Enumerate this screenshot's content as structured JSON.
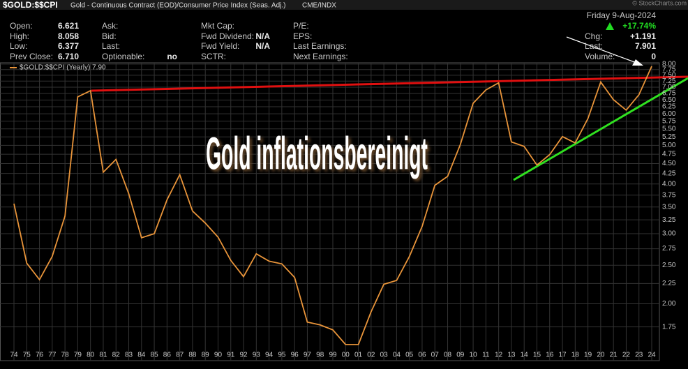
{
  "chart_data": {
    "type": "line",
    "title": "$GOLD:$$CPI",
    "subtitle": "Gold - Continuous Contract (EOD)/Consumer Price Index (Seas. Adj.)",
    "exchange": "CME/INDX",
    "copyright": "© StockCharts.com",
    "date": "Friday  9-Aug-2024",
    "change_pct": "+17.74%",
    "info": [
      [
        {
          "label": "Open:",
          "value": "6.621"
        },
        {
          "label": "High:",
          "value": "8.058"
        },
        {
          "label": "Low:",
          "value": "6.377"
        },
        {
          "label": "Prev Close:",
          "value": "6.710"
        }
      ],
      [
        {
          "label": "Ask:"
        },
        {
          "label": "Bid:"
        },
        {
          "label": "Last:"
        },
        {
          "label": "Optionable:",
          "value": "no"
        }
      ],
      [
        {
          "label": "Mkt Cap:"
        },
        {
          "label": "Fwd Dividend:",
          "value": "N/A"
        },
        {
          "label": "Fwd Yield:",
          "value": "N/A"
        },
        {
          "label": "SCTR:"
        }
      ],
      [
        {
          "label": "P/E:"
        },
        {
          "label": "EPS:"
        },
        {
          "label": "Last Earnings:"
        },
        {
          "label": "Next Earnings:"
        }
      ]
    ],
    "quote": [
      {
        "label": "Chg:",
        "value": "+1.191"
      },
      {
        "label": "Last:",
        "value": "7.901"
      },
      {
        "label": "Volume:",
        "value": "0"
      }
    ],
    "annotation": "Gold inflationsbereinigt",
    "categories": [
      "74",
      "75",
      "76",
      "77",
      "78",
      "79",
      "80",
      "81",
      "82",
      "83",
      "84",
      "85",
      "86",
      "87",
      "88",
      "89",
      "90",
      "91",
      "92",
      "93",
      "94",
      "95",
      "96",
      "97",
      "98",
      "99",
      "00",
      "01",
      "02",
      "03",
      "04",
      "05",
      "06",
      "07",
      "08",
      "09",
      "10",
      "11",
      "12",
      "13",
      "14",
      "15",
      "16",
      "17",
      "18",
      "19",
      "20",
      "21",
      "22",
      "23",
      "24"
    ],
    "series": [
      {
        "name": "$GOLD:$$CPI (Yearly) 7.90",
        "color": "#e8943a",
        "values": [
          3.57,
          2.53,
          2.3,
          2.63,
          3.32,
          6.62,
          6.86,
          4.28,
          4.61,
          3.78,
          2.93,
          3.0,
          3.65,
          4.22,
          3.42,
          3.19,
          2.94,
          2.57,
          2.34,
          2.67,
          2.56,
          2.52,
          2.33,
          1.8,
          1.77,
          1.72,
          1.58,
          1.58,
          1.91,
          2.24,
          2.29,
          2.63,
          3.13,
          3.97,
          4.18,
          5.03,
          6.38,
          6.89,
          7.18,
          5.1,
          4.97,
          4.46,
          4.74,
          5.26,
          5.07,
          5.84,
          7.21,
          6.51,
          6.13,
          6.7,
          7.9
        ]
      }
    ],
    "log_scale": true,
    "grid": true,
    "ylim": [
      1.44,
      8.06
    ],
    "yticks": [
      {
        "value": 8,
        "label": "8.00"
      },
      {
        "value": 7.75,
        "label": "7.75"
      },
      {
        "value": 7.5,
        "label": "7.50"
      },
      {
        "value": 7.25,
        "label": "7.25"
      },
      {
        "value": 7,
        "label": "7.00"
      },
      {
        "value": 6.75,
        "label": "6.75"
      },
      {
        "value": 6.5,
        "label": "6.50"
      },
      {
        "value": 6.25,
        "label": "6.25"
      },
      {
        "value": 6,
        "label": "6.00"
      },
      {
        "value": 5.75,
        "label": "5.75"
      },
      {
        "value": 5.5,
        "label": "5.50"
      },
      {
        "value": 5.25,
        "label": "5.25"
      },
      {
        "value": 5,
        "label": "5.00"
      },
      {
        "value": 4.75,
        "label": "4.75"
      },
      {
        "value": 4.5,
        "label": "4.50"
      },
      {
        "value": 4.25,
        "label": "4.25"
      },
      {
        "value": 4,
        "label": "4.00"
      },
      {
        "value": 3.75,
        "label": "3.75"
      },
      {
        "value": 3.5,
        "label": "3.50"
      },
      {
        "value": 3.25,
        "label": "3.25"
      },
      {
        "value": 3,
        "label": "3.00"
      },
      {
        "value": 2.75,
        "label": "2.75"
      },
      {
        "value": 2.5,
        "label": "2.50"
      },
      {
        "value": 2.25,
        "label": "2.25"
      },
      {
        "value": 2,
        "label": "2.00"
      },
      {
        "value": 1.75,
        "label": "1.75"
      }
    ]
  }
}
